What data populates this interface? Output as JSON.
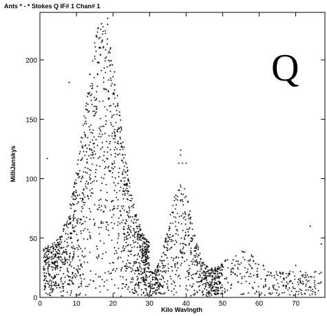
{
  "chart_data": {
    "type": "scatter",
    "header": "Ants * - *    Stokes Q  IF# 1  Chan# 1",
    "corner_label": "Q",
    "xlabel": "Kilo Wavlngth",
    "ylabel": "MilliJanskys",
    "xlim": [
      0,
      78
    ],
    "ylim": [
      0,
      240
    ],
    "xticks": [
      0,
      10,
      20,
      30,
      40,
      50,
      60,
      70
    ],
    "yticks": [
      0,
      50,
      100,
      150,
      200
    ],
    "grid": false,
    "marker": "+",
    "color": "#000000",
    "clusters": [
      {
        "x_range": [
          1,
          30
        ],
        "peak_x": 17,
        "peak_y": 235,
        "points": 1400
      },
      {
        "x_range": [
          28,
          50
        ],
        "peak_x": 38,
        "peak_y": 125,
        "points": 650
      },
      {
        "x_range": [
          45,
          77
        ],
        "peak_x": 55,
        "peak_y": 65,
        "points": 300
      }
    ],
    "notable_points": [
      {
        "x": 18.5,
        "y": 235
      },
      {
        "x": 18.5,
        "y": 230
      },
      {
        "x": 38.5,
        "y": 124
      },
      {
        "x": 38.5,
        "y": 120
      },
      {
        "x": 38,
        "y": 113
      },
      {
        "x": 39,
        "y": 113
      },
      {
        "x": 40,
        "y": 113
      },
      {
        "x": 2,
        "y": 117
      },
      {
        "x": 8,
        "y": 181
      },
      {
        "x": 74,
        "y": 60
      },
      {
        "x": 77,
        "y": 45
      },
      {
        "x": 70,
        "y": 27
      }
    ]
  }
}
